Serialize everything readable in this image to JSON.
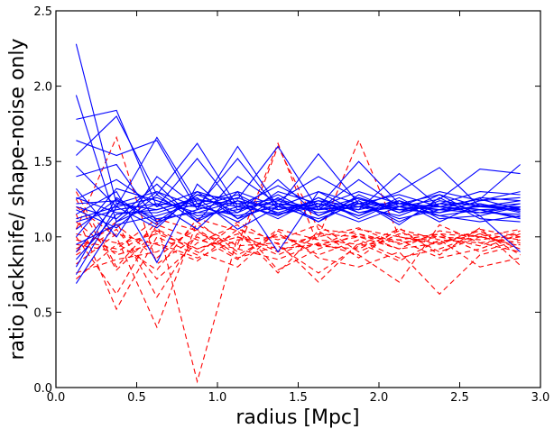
{
  "chart_data": {
    "type": "line",
    "xlabel": "radius [Mpc]",
    "ylabel": "ratio jackknife/ shape-noise only",
    "xlim": [
      0.0,
      3.0
    ],
    "ylim": [
      0.0,
      2.5
    ],
    "xticks": [
      "0.0",
      "0.5",
      "1.0",
      "1.5",
      "2.0",
      "2.5",
      "3.0"
    ],
    "yticks": [
      "0.0",
      "0.5",
      "1.0",
      "1.5",
      "2.0",
      "2.5"
    ],
    "x": [
      0.125,
      0.375,
      0.625,
      0.875,
      1.125,
      1.375,
      1.625,
      1.875,
      2.125,
      2.375,
      2.625,
      2.875
    ],
    "grid": false,
    "legend": "none",
    "series": [
      {
        "style": "solid",
        "color": "#0000ff",
        "values": [
          2.28,
          1.22,
          1.18,
          1.25,
          1.2,
          1.22,
          1.18,
          1.2,
          1.18,
          1.2,
          1.18,
          1.19
        ]
      },
      {
        "style": "solid",
        "color": "#0000ff",
        "values": [
          1.94,
          1.1,
          1.3,
          1.2,
          1.28,
          1.15,
          1.22,
          1.18,
          1.24,
          1.16,
          1.21,
          1.18
        ]
      },
      {
        "style": "solid",
        "color": "#0000ff",
        "values": [
          1.78,
          1.84,
          1.2,
          1.3,
          1.22,
          1.25,
          1.18,
          1.22,
          1.2,
          1.18,
          1.16,
          1.2
        ]
      },
      {
        "style": "solid",
        "color": "#0000ff",
        "values": [
          1.64,
          1.54,
          1.64,
          1.18,
          1.6,
          1.2,
          1.3,
          1.22,
          1.28,
          1.2,
          1.25,
          1.18
        ]
      },
      {
        "style": "solid",
        "color": "#0000ff",
        "values": [
          1.54,
          1.8,
          1.28,
          1.62,
          1.2,
          1.34,
          1.2,
          1.3,
          1.22,
          1.28,
          1.2,
          1.24
        ]
      },
      {
        "style": "solid",
        "color": "#0000ff",
        "values": [
          1.47,
          1.2,
          1.66,
          1.22,
          1.3,
          1.2,
          1.55,
          1.22,
          1.22,
          1.2,
          1.25,
          1.48
        ]
      },
      {
        "style": "solid",
        "color": "#0000ff",
        "values": [
          1.4,
          1.48,
          1.1,
          1.28,
          1.25,
          1.6,
          1.18,
          1.38,
          1.2,
          1.25,
          1.45,
          1.42
        ]
      },
      {
        "style": "solid",
        "color": "#0000ff",
        "values": [
          1.32,
          1.0,
          1.4,
          1.2,
          1.52,
          1.18,
          1.24,
          1.2,
          1.3,
          1.46,
          1.2,
          1.2
        ]
      },
      {
        "style": "solid",
        "color": "#0000ff",
        "values": [
          1.25,
          1.38,
          1.2,
          1.52,
          1.18,
          1.24,
          1.4,
          1.25,
          1.18,
          1.22,
          1.3,
          1.28
        ]
      },
      {
        "style": "solid",
        "color": "#0000ff",
        "values": [
          1.2,
          1.12,
          1.35,
          1.1,
          1.4,
          1.22,
          1.2,
          1.5,
          1.22,
          1.18,
          1.2,
          1.22
        ]
      },
      {
        "style": "solid",
        "color": "#0000ff",
        "values": [
          1.15,
          1.3,
          0.83,
          1.35,
          1.12,
          1.3,
          1.22,
          1.18,
          1.42,
          1.2,
          1.16,
          1.15
        ]
      },
      {
        "style": "solid",
        "color": "#0000ff",
        "values": [
          1.1,
          1.18,
          1.22,
          1.05,
          1.3,
          0.9,
          1.3,
          1.16,
          1.2,
          1.3,
          1.24,
          1.3
        ]
      },
      {
        "style": "solid",
        "color": "#0000ff",
        "values": [
          1.05,
          1.25,
          1.08,
          1.28,
          1.16,
          1.38,
          1.14,
          1.26,
          1.16,
          1.22,
          1.18,
          1.12
        ]
      },
      {
        "style": "solid",
        "color": "#0000ff",
        "values": [
          1.0,
          1.32,
          1.24,
          1.16,
          1.24,
          1.12,
          1.26,
          1.12,
          1.24,
          1.1,
          1.22,
          1.16
        ]
      },
      {
        "style": "solid",
        "color": "#0000ff",
        "values": [
          0.95,
          1.08,
          1.14,
          1.22,
          1.1,
          1.26,
          1.1,
          1.24,
          1.08,
          1.26,
          1.12,
          1.1
        ]
      },
      {
        "style": "solid",
        "color": "#0000ff",
        "values": [
          0.9,
          1.22,
          1.3,
          1.12,
          1.2,
          1.15,
          1.2,
          1.1,
          1.2,
          1.14,
          1.1,
          1.14
        ]
      },
      {
        "style": "solid",
        "color": "#0000ff",
        "values": [
          0.85,
          1.15,
          1.18,
          1.26,
          1.05,
          1.2,
          1.12,
          1.22,
          1.12,
          1.18,
          1.26,
          1.24
        ]
      },
      {
        "style": "solid",
        "color": "#0000ff",
        "values": [
          0.8,
          1.26,
          1.1,
          1.18,
          1.26,
          1.16,
          1.24,
          1.14,
          1.26,
          1.12,
          1.14,
          0.9
        ]
      },
      {
        "style": "solid",
        "color": "#0000ff",
        "values": [
          0.75,
          1.2,
          1.26,
          1.14,
          1.18,
          1.24,
          1.16,
          1.2,
          1.14,
          1.24,
          1.2,
          1.18
        ]
      },
      {
        "style": "solid",
        "color": "#0000ff",
        "values": [
          0.69,
          1.1,
          1.22,
          1.2,
          1.14,
          1.2,
          1.18,
          1.26,
          1.18,
          1.16,
          1.24,
          1.26
        ]
      },
      {
        "style": "solid",
        "color": "#0000ff",
        "values": [
          1.26,
          1.16,
          1.16,
          1.24,
          1.22,
          1.14,
          1.26,
          1.16,
          1.22,
          1.2,
          1.16,
          1.22
        ]
      },
      {
        "style": "solid",
        "color": "#0000ff",
        "values": [
          1.22,
          1.24,
          1.12,
          1.16,
          1.16,
          1.28,
          1.14,
          1.24,
          1.1,
          1.22,
          1.22,
          1.17
        ]
      },
      {
        "style": "solid",
        "color": "#0000ff",
        "values": [
          1.18,
          1.06,
          1.28,
          1.1,
          1.24,
          1.18,
          1.22,
          1.14,
          1.24,
          1.14,
          1.18,
          1.13
        ]
      },
      {
        "style": "solid",
        "color": "#0000ff",
        "values": [
          1.12,
          1.2,
          1.06,
          1.3,
          1.12,
          1.22,
          1.1,
          1.28,
          1.16,
          1.28,
          1.14,
          1.2
        ]
      },
      {
        "style": "dashed",
        "color": "#ff0000",
        "values": [
          1.3,
          0.8,
          1.1,
          0.04,
          1.0,
          0.92,
          0.95,
          1.0,
          0.98,
          1.02,
          1.0,
          1.05
        ]
      },
      {
        "style": "dashed",
        "color": "#ff0000",
        "values": [
          1.2,
          1.0,
          0.4,
          1.1,
          0.9,
          1.6,
          1.05,
          1.02,
          0.96,
          1.0,
          0.98,
          1.02
        ]
      },
      {
        "style": "dashed",
        "color": "#ff0000",
        "values": [
          1.15,
          0.52,
          1.0,
          0.88,
          1.1,
          0.95,
          1.0,
          1.64,
          1.0,
          0.96,
          1.02,
          0.98
        ]
      },
      {
        "style": "dashed",
        "color": "#ff0000",
        "values": [
          1.05,
          1.66,
          0.82,
          1.0,
          0.85,
          1.05,
          0.98,
          0.95,
          1.05,
          0.98,
          0.96,
          1.0
        ]
      },
      {
        "style": "dashed",
        "color": "#ff0000",
        "values": [
          0.95,
          0.9,
          1.05,
          0.92,
          1.02,
          0.9,
          1.02,
          1.0,
          0.92,
          1.04,
          1.0,
          0.96
        ]
      },
      {
        "style": "dashed",
        "color": "#ff0000",
        "values": [
          0.9,
          1.1,
          0.6,
          1.02,
          0.95,
          1.62,
          0.94,
          1.05,
          1.0,
          0.95,
          1.05,
          1.0
        ]
      },
      {
        "style": "dashed",
        "color": "#ff0000",
        "values": [
          0.82,
          1.02,
          0.95,
          0.84,
          1.05,
          0.98,
          1.08,
          0.9,
          1.02,
          1.0,
          0.94,
          1.04
        ]
      },
      {
        "style": "dashed",
        "color": "#ff0000",
        "values": [
          0.76,
          0.85,
          0.9,
          1.05,
          0.88,
          1.02,
          0.88,
          0.98,
          0.86,
          0.92,
          1.02,
          0.92
        ]
      },
      {
        "style": "dashed",
        "color": "#ff0000",
        "values": [
          0.72,
          0.95,
          1.02,
          0.92,
          1.0,
          0.88,
          1.0,
          1.06,
          0.95,
          1.02,
          0.9,
          0.98
        ]
      },
      {
        "style": "dashed",
        "color": "#ff0000",
        "values": [
          1.1,
          0.88,
          0.96,
          0.86,
          0.98,
          1.0,
          0.94,
          0.92,
          1.04,
          0.9,
          1.0,
          0.94
        ]
      },
      {
        "style": "dashed",
        "color": "#ff0000",
        "values": [
          1.0,
          0.62,
          1.08,
          0.98,
          0.92,
          0.85,
          0.96,
          0.88,
          0.7,
          1.08,
          0.96,
          0.9
        ]
      },
      {
        "style": "dashed",
        "color": "#ff0000",
        "values": [
          0.98,
          0.92,
          1.12,
          1.04,
          0.86,
          0.94,
          0.76,
          0.94,
          0.98,
          0.86,
          0.92,
          1.02
        ]
      },
      {
        "style": "dashed",
        "color": "#ff0000",
        "values": [
          0.88,
          1.05,
          0.72,
          0.96,
          1.08,
          0.78,
          0.92,
          1.02,
          0.92,
          0.96,
          1.04,
          0.88
        ]
      },
      {
        "style": "dashed",
        "color": "#ff0000",
        "values": [
          1.25,
          0.78,
          1.04,
          0.9,
          0.8,
          1.04,
          0.86,
          0.8,
          0.9,
          0.62,
          0.88,
          0.95
        ]
      },
      {
        "style": "dashed",
        "color": "#ff0000",
        "values": [
          0.92,
          1.08,
          0.86,
          1.08,
          0.94,
          0.96,
          0.7,
          0.96,
          0.84,
          0.98,
          0.8,
          0.86
        ]
      },
      {
        "style": "dashed",
        "color": "#ff0000",
        "values": [
          1.02,
          0.96,
          0.78,
          1.12,
          1.04,
          0.76,
          1.04,
          0.86,
          1.06,
          0.88,
          1.06,
          0.81
        ]
      }
    ]
  }
}
